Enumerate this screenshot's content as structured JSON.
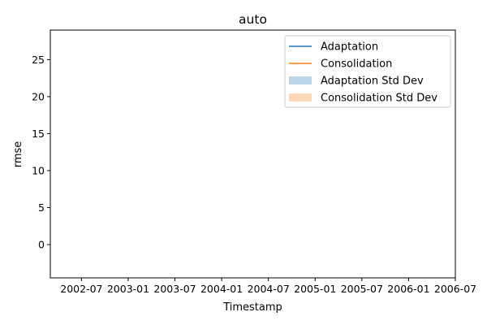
{
  "chart_data": {
    "type": "line",
    "title": "auto",
    "xlabel": "Timestamp",
    "ylabel": "rmse",
    "x_ticks": [
      "2002-07",
      "2003-01",
      "2003-07",
      "2004-01",
      "2004-07",
      "2005-01",
      "2005-07",
      "2006-01",
      "2006-07"
    ],
    "y_ticks": [
      0,
      5,
      10,
      15,
      20,
      25
    ],
    "ylim": [
      -4.5,
      29
    ],
    "xlim": [
      "2002-03",
      "2006-07"
    ],
    "grid": false,
    "legend_position": "top-right",
    "series": [
      {
        "name": "Adaptation",
        "kind": "line",
        "color": "#1f77b4",
        "x": [],
        "values": []
      },
      {
        "name": "Consolidation",
        "kind": "line",
        "color": "#ff7f0e",
        "x": [],
        "values": []
      },
      {
        "name": "Adaptation Std Dev",
        "kind": "band",
        "color": "#1f77b4",
        "x": [],
        "lower": [],
        "upper": []
      },
      {
        "name": "Consolidation Std Dev",
        "kind": "band",
        "color": "#ff7f0e",
        "x": [],
        "lower": [],
        "upper": []
      }
    ]
  }
}
